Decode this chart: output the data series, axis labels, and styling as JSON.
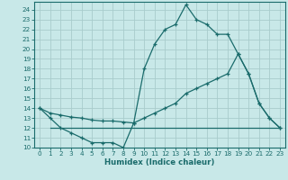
{
  "xlabel": "Humidex (Indice chaleur)",
  "background_color": "#c8e8e8",
  "line_color": "#1a6b6b",
  "grid_color": "#a8cccc",
  "xlim": [
    -0.5,
    23.5
  ],
  "ylim": [
    10,
    24.8
  ],
  "xticks": [
    0,
    1,
    2,
    3,
    4,
    5,
    6,
    7,
    8,
    9,
    10,
    11,
    12,
    13,
    14,
    15,
    16,
    17,
    18,
    19,
    20,
    21,
    22,
    23
  ],
  "yticks": [
    10,
    11,
    12,
    13,
    14,
    15,
    16,
    17,
    18,
    19,
    20,
    21,
    22,
    23,
    24
  ],
  "line1_x": [
    0,
    1,
    2,
    3,
    4,
    5,
    6,
    7,
    8,
    9,
    10,
    11,
    12,
    13,
    14,
    15,
    16,
    17,
    18,
    19,
    20,
    21,
    22,
    23
  ],
  "line1_y": [
    14,
    13,
    12,
    11.5,
    11,
    10.5,
    10.5,
    10.5,
    10,
    12.5,
    18,
    20.5,
    22,
    22.5,
    24.5,
    23,
    22.5,
    21.5,
    21.5,
    19.5,
    17.5,
    14.5,
    13,
    12
  ],
  "line2_x": [
    0,
    1,
    2,
    3,
    4,
    5,
    6,
    7,
    8,
    9,
    10,
    11,
    12,
    13,
    14,
    15,
    16,
    17,
    18,
    19,
    20,
    21,
    22,
    23
  ],
  "line2_y": [
    14,
    13.5,
    13.3,
    13.1,
    13.0,
    12.8,
    12.7,
    12.7,
    12.6,
    12.5,
    13,
    13.5,
    14,
    14.5,
    15.5,
    16,
    16.5,
    17,
    17.5,
    19.5,
    17.5,
    14.5,
    13,
    12
  ],
  "line3_x": [
    1,
    2,
    3,
    4,
    5,
    6,
    7,
    8,
    9,
    10,
    11,
    12,
    13,
    14,
    15,
    16,
    17,
    18,
    19,
    20,
    21,
    22,
    23
  ],
  "line3_y": [
    12,
    12,
    12,
    12,
    12,
    12,
    12,
    12,
    12,
    12,
    12,
    12,
    12,
    12,
    12,
    12,
    12,
    12,
    12,
    12,
    12,
    12,
    12
  ]
}
